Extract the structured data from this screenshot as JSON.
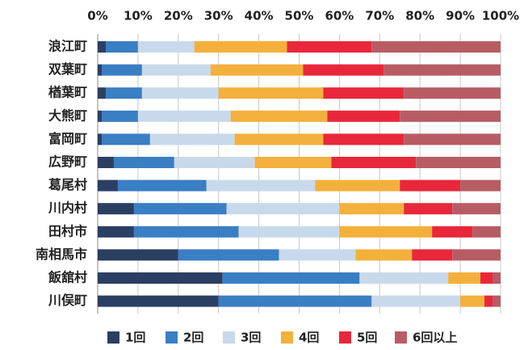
{
  "chart_data": {
    "type": "bar",
    "orientation": "horizontal",
    "stacked": true,
    "categories": [
      "浪江町",
      "双葉町",
      "楢葉町",
      "大熊町",
      "富岡町",
      "広野町",
      "葛尾村",
      "川内村",
      "田村市",
      "南相馬市",
      "飯舘村",
      "川俣町"
    ],
    "series": [
      {
        "name": "1回",
        "color": "#2b3f63",
        "values": [
          2,
          1,
          2,
          1,
          1,
          4,
          5,
          9,
          9,
          20,
          31,
          30
        ]
      },
      {
        "name": "2回",
        "color": "#3a7ec4",
        "values": [
          8,
          10,
          9,
          9,
          12,
          15,
          22,
          23,
          26,
          25,
          34,
          38
        ]
      },
      {
        "name": "3回",
        "color": "#c8d9ec",
        "values": [
          14,
          17,
          19,
          23,
          21,
          20,
          27,
          28,
          25,
          19,
          22,
          22
        ]
      },
      {
        "name": "4回",
        "color": "#f4b03c",
        "values": [
          23,
          23,
          26,
          24,
          22,
          19,
          21,
          16,
          23,
          14,
          8,
          6
        ]
      },
      {
        "name": "5回",
        "color": "#e8283a",
        "values": [
          21,
          20,
          20,
          18,
          20,
          21,
          15,
          12,
          10,
          10,
          3,
          2
        ]
      },
      {
        "name": "6回以上",
        "color": "#b85c64",
        "values": [
          32,
          29,
          24,
          25,
          24,
          21,
          10,
          12,
          7,
          12,
          2,
          2
        ]
      }
    ],
    "xlim": [
      0,
      100
    ],
    "xticks": [
      {
        "value": 0,
        "label": "0%"
      },
      {
        "value": 10,
        "label": "10%"
      },
      {
        "value": 20,
        "label": "20%"
      },
      {
        "value": 30,
        "label": "30%"
      },
      {
        "value": 40,
        "label": "40%"
      },
      {
        "value": 50,
        "label": "50%"
      },
      {
        "value": 60,
        "label": "60%"
      },
      {
        "value": 70,
        "label": "70%"
      },
      {
        "value": 80,
        "label": "80%"
      },
      {
        "value": 90,
        "label": "90%"
      },
      {
        "value": 100,
        "label": "100%"
      }
    ],
    "grid": true,
    "legend": "bottom"
  }
}
